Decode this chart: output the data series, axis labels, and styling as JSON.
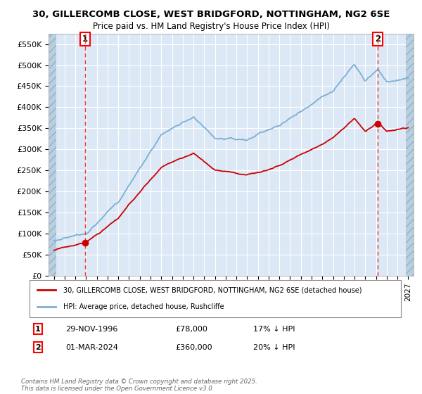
{
  "title_line1": "30, GILLERCOMB CLOSE, WEST BRIDGFORD, NOTTINGHAM, NG2 6SE",
  "title_line2": "Price paid vs. HM Land Registry's House Price Index (HPI)",
  "ylim": [
    0,
    575000
  ],
  "xlim_start": 1993.5,
  "xlim_end": 2027.5,
  "ytick_labels": [
    "£0",
    "£50K",
    "£100K",
    "£150K",
    "£200K",
    "£250K",
    "£300K",
    "£350K",
    "£400K",
    "£450K",
    "£500K",
    "£550K"
  ],
  "background_color": "#ffffff",
  "plot_bg_color": "#dce8f5",
  "grid_color": "#ffffff",
  "red_line_color": "#cc0000",
  "blue_line_color": "#7bafd4",
  "dashed_red_color": "#ee3333",
  "marker1_x": 1996.92,
  "marker1_y": 78000,
  "marker2_x": 2024.17,
  "marker2_y": 360000,
  "legend_line1": "30, GILLERCOMB CLOSE, WEST BRIDGFORD, NOTTINGHAM, NG2 6SE (detached house)",
  "legend_line2": "HPI: Average price, detached house, Rushcliffe",
  "label1_date": "29-NOV-1996",
  "label1_price": "£78,000",
  "label1_hpi": "17% ↓ HPI",
  "label2_date": "01-MAR-2024",
  "label2_price": "£360,000",
  "label2_hpi": "20% ↓ HPI",
  "footer": "Contains HM Land Registry data © Crown copyright and database right 2025.\nThis data is licensed under the Open Government Licence v3.0."
}
